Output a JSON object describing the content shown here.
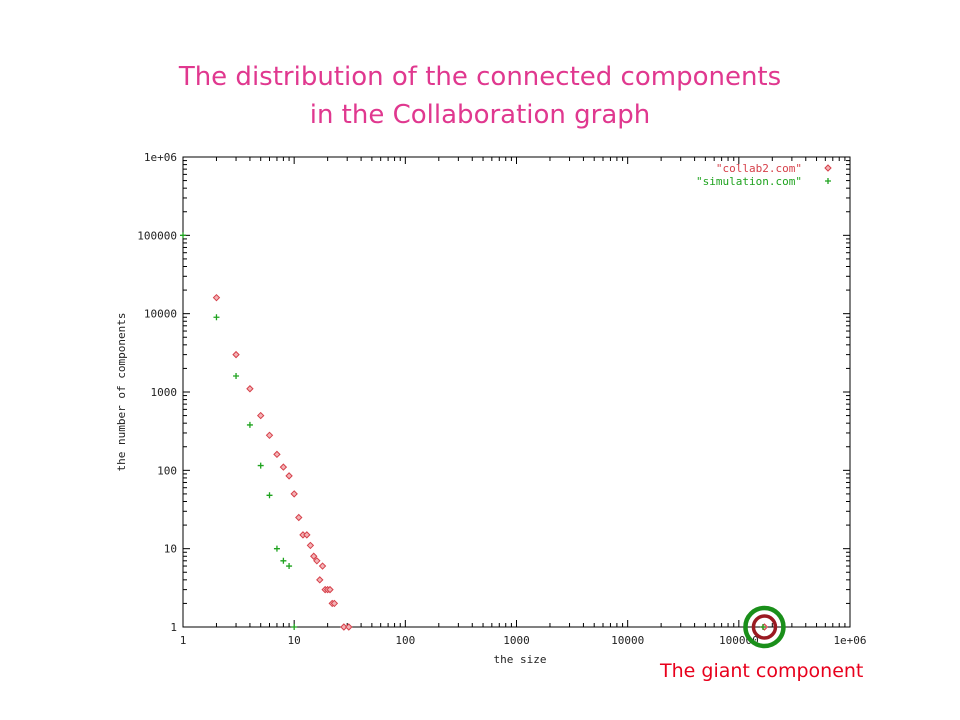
{
  "page": {
    "title_line1": "The distribution of the connected components",
    "title_line2": "in the Collaboration graph",
    "annotation": "The giant component"
  },
  "chart_data": {
    "type": "scatter",
    "xscale": "log",
    "yscale": "log",
    "xlim": [
      1,
      1000000
    ],
    "ylim": [
      1,
      1000000
    ],
    "xlabel": "the size",
    "ylabel": "the number of components",
    "x_ticks": [
      1,
      10,
      100,
      1000,
      10000,
      100000,
      1000000
    ],
    "x_tick_labels": [
      "1",
      "10",
      "100",
      "1000",
      "10000",
      "100000",
      "1e+06"
    ],
    "y_ticks": [
      1,
      10,
      100,
      1000,
      10000,
      100000,
      1000000
    ],
    "y_tick_labels": [
      "1",
      "10",
      "100",
      "1000",
      "10000",
      "100000",
      "1e+06"
    ],
    "grid": false,
    "legend_position": "top-right",
    "series": [
      {
        "name": "\"collab2.com\"",
        "marker": "diamond",
        "color": "#d6404a",
        "points": [
          [
            2,
            16000
          ],
          [
            3,
            3000
          ],
          [
            4,
            1100
          ],
          [
            5,
            500
          ],
          [
            6,
            280
          ],
          [
            7,
            160
          ],
          [
            8,
            110
          ],
          [
            9,
            85
          ],
          [
            10,
            50
          ],
          [
            11,
            25
          ],
          [
            12,
            15
          ],
          [
            13,
            15
          ],
          [
            14,
            11
          ],
          [
            15,
            8
          ],
          [
            16,
            7
          ],
          [
            17,
            4
          ],
          [
            18,
            6
          ],
          [
            19,
            3
          ],
          [
            20,
            3
          ],
          [
            21,
            3
          ],
          [
            22,
            2
          ],
          [
            23,
            2
          ],
          [
            28,
            1
          ],
          [
            31,
            1
          ],
          [
            170000,
            1
          ]
        ]
      },
      {
        "name": "\"simulation.com\"",
        "marker": "plus",
        "color": "#1fa31f",
        "points": [
          [
            1,
            100000
          ],
          [
            2,
            9000
          ],
          [
            3,
            1600
          ],
          [
            4,
            380
          ],
          [
            5,
            115
          ],
          [
            6,
            48
          ],
          [
            7,
            10
          ],
          [
            8,
            7
          ],
          [
            9,
            6
          ],
          [
            10,
            1
          ],
          [
            165000,
            1
          ]
        ]
      }
    ],
    "highlight": {
      "x": 170000,
      "y": 1,
      "outer_color": "#1a8f1a",
      "inner_color": "#9a1a22"
    }
  }
}
